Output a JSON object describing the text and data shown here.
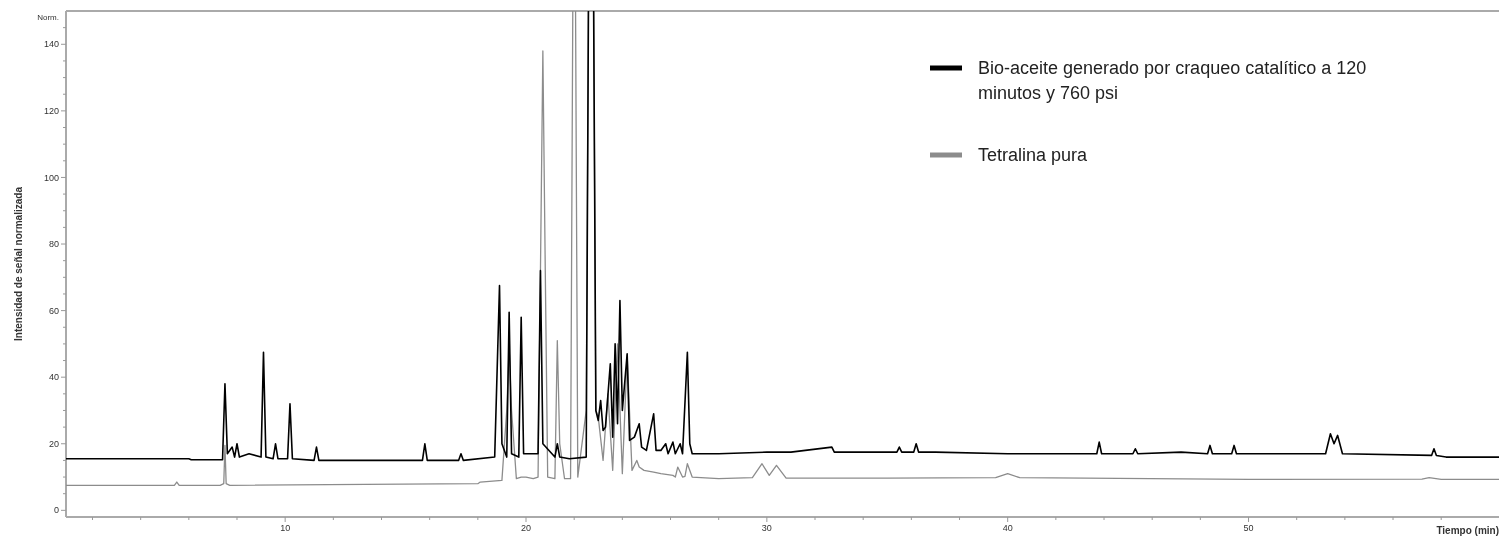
{
  "chart_data": {
    "type": "line",
    "xlabel": "Tiempo (min)",
    "ylabel": "Intensidad de señal normalizada",
    "annotations": [
      "Norm."
    ],
    "xlim": [
      0.9,
      60.4
    ],
    "ylim": [
      -2,
      150
    ],
    "xticks": [
      {
        "value": 2,
        "label": null
      },
      {
        "value": 4,
        "label": null
      },
      {
        "value": 6,
        "label": null
      },
      {
        "value": 8,
        "label": null
      },
      10,
      {
        "value": 12,
        "label": null
      },
      {
        "value": 14,
        "label": null
      },
      {
        "value": 16,
        "label": null
      },
      {
        "value": 18,
        "label": null
      },
      20,
      {
        "value": 22,
        "label": null
      },
      {
        "value": 24,
        "label": null
      },
      {
        "value": 26,
        "label": null
      },
      {
        "value": 28,
        "label": null
      },
      30,
      {
        "value": 32,
        "label": null
      },
      {
        "value": 34,
        "label": null
      },
      {
        "value": 36,
        "label": null
      },
      {
        "value": 38,
        "label": null
      },
      40,
      {
        "value": 42,
        "label": null
      },
      {
        "value": 44,
        "label": null
      },
      {
        "value": 46,
        "label": null
      },
      {
        "value": 48,
        "label": null
      },
      50,
      {
        "value": 52,
        "label": null
      },
      {
        "value": 54,
        "label": null
      },
      {
        "value": 56,
        "label": null
      },
      {
        "value": 58,
        "label": null
      }
    ],
    "yticks": [
      0,
      {
        "value": 5,
        "label": null
      },
      {
        "value": 10,
        "label": null
      },
      {
        "value": 15,
        "label": null
      },
      20,
      {
        "value": 25,
        "label": null
      },
      {
        "value": 30,
        "label": null
      },
      {
        "value": 35,
        "label": null
      },
      40,
      {
        "value": 45,
        "label": null
      },
      {
        "value": 50,
        "label": null
      },
      {
        "value": 55,
        "label": null
      },
      60,
      {
        "value": 65,
        "label": null
      },
      {
        "value": 70,
        "label": null
      },
      {
        "value": 75,
        "label": null
      },
      80,
      {
        "value": 85,
        "label": null
      },
      {
        "value": 90,
        "label": null
      },
      {
        "value": 95,
        "label": null
      },
      100,
      {
        "value": 105,
        "label": null
      },
      {
        "value": 110,
        "label": null
      },
      {
        "value": 115,
        "label": null
      },
      120,
      {
        "value": 125,
        "label": null
      },
      {
        "value": 130,
        "label": null
      },
      {
        "value": 135,
        "label": null
      },
      140,
      {
        "value": 145,
        "label": null
      }
    ],
    "grid": false,
    "legend": "top right",
    "marker": "none",
    "line_style": "solid",
    "series": [
      {
        "name": "Tetralina pura",
        "color": "#8c8c8c",
        "x": [
          0.9,
          5.4,
          5.5,
          5.6,
          7.3,
          7.45,
          7.5,
          7.55,
          7.7,
          18.0,
          18.1,
          19.0,
          19.2,
          19.3,
          19.4,
          19.6,
          19.8,
          20.0,
          20.3,
          20.5,
          20.6,
          20.7,
          20.8,
          20.9,
          21.2,
          21.3,
          21.4,
          21.6,
          21.85,
          21.95,
          22.05,
          22.15,
          22.5,
          22.6,
          22.7,
          22.8,
          22.9,
          23.0,
          23.2,
          23.4,
          23.6,
          23.8,
          24.0,
          24.2,
          24.4,
          24.6,
          24.7,
          24.9,
          25.3,
          25.6,
          26.1,
          26.2,
          26.3,
          26.5,
          26.6,
          26.7,
          26.9,
          28.0,
          29.4,
          29.8,
          30.1,
          30.4,
          30.8,
          35.0,
          39.5,
          40.0,
          40.5,
          50.0,
          57.2,
          57.5,
          58.0,
          60.4
        ],
        "values": [
          7.5,
          7.5,
          8.5,
          7.5,
          7.5,
          8,
          19.5,
          8,
          7.5,
          8,
          8.5,
          9,
          30,
          49,
          30,
          9.5,
          10,
          10,
          9.5,
          10,
          72,
          138,
          72,
          10,
          9.5,
          51,
          20,
          9.5,
          9.5,
          null,
          null,
          10,
          30,
          null,
          null,
          null,
          30,
          28,
          15,
          35,
          12,
          50,
          11,
          46.7,
          12,
          15,
          13,
          12,
          11.5,
          11,
          10.5,
          10,
          13,
          10,
          10.2,
          14,
          10,
          9.5,
          9.8,
          14,
          10.5,
          13.5,
          9.7,
          9.7,
          9.8,
          11,
          9.8,
          9.3,
          9.4,
          9.8,
          9.3,
          9.3
        ]
      },
      {
        "name": "Bio-aceite generado por craqueo catalítico a 120 minutos y 760 psi",
        "color": "#000000",
        "x": [
          0.9,
          6.0,
          6.1,
          7.4,
          7.5,
          7.6,
          7.8,
          7.9,
          8.0,
          8.1,
          8.5,
          9.0,
          9.1,
          9.2,
          9.5,
          9.6,
          9.7,
          10.1,
          10.2,
          10.3,
          11.2,
          11.3,
          11.4,
          12.5,
          13.5,
          15.7,
          15.8,
          15.9,
          17.2,
          17.3,
          17.4,
          18.7,
          18.9,
          19.0,
          19.2,
          19.3,
          19.4,
          19.7,
          19.8,
          19.9,
          20.5,
          20.6,
          20.7,
          21.2,
          21.3,
          21.4,
          21.8,
          22.5,
          22.6,
          22.7,
          22.8,
          22.9,
          23.0,
          23.1,
          23.2,
          23.3,
          23.5,
          23.6,
          23.7,
          23.8,
          23.9,
          24.0,
          24.2,
          24.3,
          24.5,
          24.7,
          24.8,
          25.0,
          25.3,
          25.4,
          25.6,
          25.8,
          25.9,
          26.1,
          26.2,
          26.4,
          26.5,
          26.7,
          26.8,
          26.9,
          28.0,
          30.0,
          31.0,
          32.7,
          32.8,
          35.4,
          35.5,
          35.6,
          36.1,
          36.2,
          36.3,
          37.0,
          40.0,
          43.7,
          43.8,
          43.9,
          45.2,
          45.3,
          45.4,
          47.2,
          48.3,
          48.4,
          48.5,
          49.3,
          49.4,
          49.5,
          53.2,
          53.4,
          53.55,
          53.7,
          53.9,
          57.6,
          57.7,
          57.8,
          58.2,
          60.4
        ],
        "values": [
          15.5,
          15.5,
          15.2,
          15.2,
          38,
          17,
          19,
          16,
          20,
          16,
          17,
          16,
          47.5,
          16,
          15.5,
          20,
          15.5,
          15.5,
          32,
          15.5,
          15,
          19,
          15,
          15,
          15,
          15,
          20,
          15,
          15,
          17,
          15,
          16,
          67.5,
          20,
          16,
          59.5,
          17,
          16,
          58,
          17,
          17,
          72,
          20,
          16,
          20,
          16,
          15.5,
          16,
          null,
          null,
          null,
          30,
          27,
          33,
          24,
          25,
          44,
          22,
          50,
          26,
          63,
          30,
          47,
          21,
          22,
          26,
          19,
          18,
          29,
          18,
          18,
          20,
          17,
          20.5,
          17,
          20,
          17,
          47.5,
          20,
          17,
          17,
          17.5,
          17.5,
          19,
          17.5,
          17.5,
          19,
          17.5,
          17.5,
          20,
          17.5,
          17.5,
          17,
          17,
          20.5,
          17,
          17,
          18.5,
          17,
          17.5,
          17,
          19.5,
          17,
          17,
          19.5,
          17,
          17,
          23,
          20,
          22.5,
          17,
          16.5,
          18.5,
          16.5,
          16,
          16
        ]
      }
    ]
  }
}
